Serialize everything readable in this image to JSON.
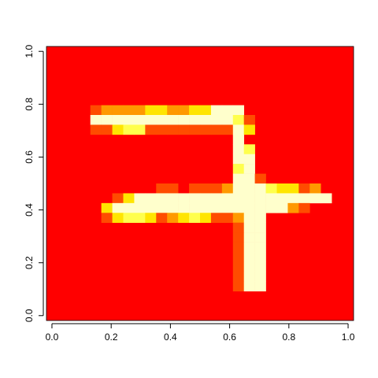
{
  "chart_data": {
    "type": "heatmap",
    "title": "",
    "xlabel": "",
    "ylabel": "",
    "xlim": [
      0,
      1
    ],
    "ylim": [
      0,
      1
    ],
    "x_ticks": [
      "0.0",
      "0.2",
      "0.4",
      "0.6",
      "0.8",
      "1.0"
    ],
    "y_ticks": [
      "0.0",
      "0.2",
      "0.4",
      "0.6",
      "0.8",
      "1.0"
    ],
    "palette": "heat",
    "palette_colors": [
      "#FF0000",
      "#FF4C00",
      "#FF9900",
      "#FFE500",
      "#FFFF4C",
      "#FFFFCC"
    ],
    "grid_size": 28,
    "notes": "cells listed as row (from top) and column (from left) indices of a 28x28 grid; value is palette level 0 (red) to 5 (pale yellow)",
    "cells": [
      [
        6,
        4,
        1
      ],
      [
        6,
        5,
        2
      ],
      [
        6,
        6,
        2
      ],
      [
        6,
        7,
        2
      ],
      [
        6,
        8,
        2
      ],
      [
        6,
        9,
        3
      ],
      [
        6,
        10,
        3
      ],
      [
        6,
        11,
        2
      ],
      [
        6,
        12,
        2
      ],
      [
        6,
        13,
        3
      ],
      [
        6,
        14,
        3
      ],
      [
        6,
        15,
        5
      ],
      [
        6,
        16,
        5
      ],
      [
        6,
        17,
        5
      ],
      [
        7,
        4,
        5
      ],
      [
        7,
        5,
        5
      ],
      [
        7,
        6,
        5
      ],
      [
        7,
        7,
        5
      ],
      [
        7,
        8,
        5
      ],
      [
        7,
        9,
        5
      ],
      [
        7,
        10,
        5
      ],
      [
        7,
        11,
        5
      ],
      [
        7,
        12,
        5
      ],
      [
        7,
        13,
        5
      ],
      [
        7,
        14,
        5
      ],
      [
        7,
        15,
        5
      ],
      [
        7,
        16,
        5
      ],
      [
        7,
        17,
        4
      ],
      [
        7,
        18,
        1
      ],
      [
        8,
        4,
        1
      ],
      [
        8,
        5,
        1
      ],
      [
        8,
        6,
        3
      ],
      [
        8,
        7,
        4
      ],
      [
        8,
        8,
        4
      ],
      [
        8,
        9,
        1
      ],
      [
        8,
        10,
        1
      ],
      [
        8,
        11,
        1
      ],
      [
        8,
        12,
        1
      ],
      [
        8,
        13,
        1
      ],
      [
        8,
        14,
        1
      ],
      [
        8,
        15,
        1
      ],
      [
        8,
        16,
        1
      ],
      [
        8,
        17,
        5
      ],
      [
        8,
        18,
        3
      ],
      [
        9,
        17,
        5
      ],
      [
        9,
        18,
        0
      ],
      [
        10,
        17,
        5
      ],
      [
        10,
        18,
        4
      ],
      [
        11,
        17,
        5
      ],
      [
        11,
        18,
        5
      ],
      [
        12,
        17,
        4
      ],
      [
        12,
        18,
        5
      ],
      [
        13,
        17,
        5
      ],
      [
        13,
        18,
        5
      ],
      [
        13,
        19,
        1
      ],
      [
        14,
        10,
        1
      ],
      [
        14,
        11,
        1
      ],
      [
        14,
        13,
        1
      ],
      [
        14,
        14,
        1
      ],
      [
        14,
        15,
        1
      ],
      [
        14,
        16,
        2
      ],
      [
        14,
        17,
        5
      ],
      [
        14,
        18,
        5
      ],
      [
        14,
        19,
        5
      ],
      [
        14,
        20,
        4
      ],
      [
        14,
        21,
        3
      ],
      [
        14,
        22,
        3
      ],
      [
        14,
        23,
        1
      ],
      [
        14,
        24,
        2
      ],
      [
        15,
        6,
        1
      ],
      [
        15,
        7,
        3
      ],
      [
        15,
        8,
        5
      ],
      [
        15,
        9,
        5
      ],
      [
        15,
        10,
        5
      ],
      [
        15,
        11,
        5
      ],
      [
        15,
        12,
        5
      ],
      [
        15,
        13,
        5
      ],
      [
        15,
        14,
        5
      ],
      [
        15,
        15,
        5
      ],
      [
        15,
        16,
        5
      ],
      [
        15,
        17,
        5
      ],
      [
        15,
        18,
        5
      ],
      [
        15,
        19,
        5
      ],
      [
        15,
        20,
        5
      ],
      [
        15,
        21,
        5
      ],
      [
        15,
        22,
        5
      ],
      [
        15,
        23,
        5
      ],
      [
        15,
        24,
        5
      ],
      [
        15,
        25,
        5
      ],
      [
        16,
        5,
        3
      ],
      [
        16,
        6,
        5
      ],
      [
        16,
        7,
        5
      ],
      [
        16,
        8,
        5
      ],
      [
        16,
        9,
        5
      ],
      [
        16,
        10,
        5
      ],
      [
        16,
        11,
        5
      ],
      [
        16,
        12,
        5
      ],
      [
        16,
        13,
        5
      ],
      [
        16,
        14,
        5
      ],
      [
        16,
        15,
        5
      ],
      [
        16,
        16,
        5
      ],
      [
        16,
        17,
        5
      ],
      [
        16,
        18,
        5
      ],
      [
        16,
        19,
        5
      ],
      [
        16,
        20,
        5
      ],
      [
        16,
        21,
        5
      ],
      [
        16,
        22,
        2
      ],
      [
        16,
        23,
        1
      ],
      [
        17,
        5,
        1
      ],
      [
        17,
        6,
        3
      ],
      [
        17,
        7,
        4
      ],
      [
        17,
        8,
        4
      ],
      [
        17,
        9,
        3
      ],
      [
        17,
        10,
        1
      ],
      [
        17,
        11,
        2
      ],
      [
        17,
        12,
        3
      ],
      [
        17,
        13,
        4
      ],
      [
        17,
        14,
        3
      ],
      [
        17,
        15,
        1
      ],
      [
        17,
        16,
        1
      ],
      [
        17,
        17,
        2
      ],
      [
        17,
        18,
        5
      ],
      [
        17,
        19,
        5
      ],
      [
        18,
        17,
        1
      ],
      [
        18,
        18,
        5
      ],
      [
        18,
        19,
        5
      ],
      [
        19,
        17,
        1
      ],
      [
        19,
        18,
        5
      ],
      [
        19,
        19,
        5
      ],
      [
        20,
        17,
        1
      ],
      [
        20,
        18,
        5
      ],
      [
        20,
        19,
        5
      ],
      [
        21,
        17,
        1
      ],
      [
        21,
        18,
        5
      ],
      [
        21,
        19,
        5
      ],
      [
        22,
        17,
        1
      ],
      [
        22,
        18,
        5
      ],
      [
        22,
        19,
        5
      ],
      [
        23,
        17,
        1
      ],
      [
        23,
        18,
        5
      ],
      [
        23,
        19,
        5
      ],
      [
        24,
        17,
        1
      ],
      [
        24,
        18,
        5
      ],
      [
        24,
        19,
        5
      ]
    ]
  }
}
